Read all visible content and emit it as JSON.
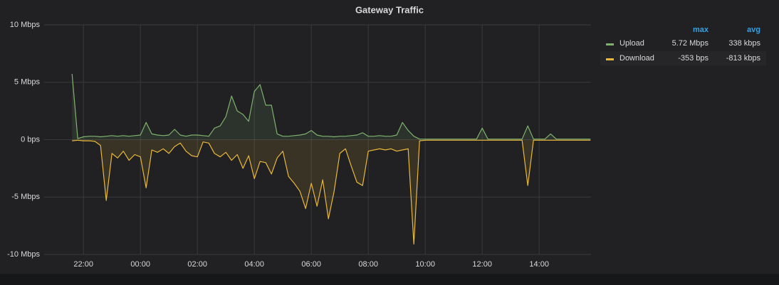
{
  "chart_data": {
    "type": "line",
    "title": "Gateway Traffic",
    "x": [
      20.8,
      21.0,
      21.2,
      21.4,
      21.6,
      21.8,
      22.0,
      22.2,
      22.4,
      22.6,
      22.8,
      23.0,
      23.2,
      23.4,
      23.6,
      23.8,
      24.0,
      24.2,
      24.4,
      24.6,
      24.8,
      25.0,
      25.2,
      25.4,
      25.6,
      25.8,
      26.0,
      26.2,
      26.4,
      26.6,
      26.8,
      27.0,
      27.2,
      27.4,
      27.6,
      27.8,
      28.0,
      28.2,
      28.4,
      28.6,
      28.8,
      29.0,
      29.2,
      29.4,
      29.6,
      29.8,
      30.0,
      30.2,
      30.4,
      30.6,
      30.8,
      31.0,
      31.2,
      31.4,
      31.6,
      31.8,
      32.0,
      32.2,
      32.4,
      32.6,
      32.8,
      33.0,
      33.2,
      33.4,
      33.6,
      33.8,
      34.0,
      34.2,
      34.4,
      34.6,
      34.8,
      35.0,
      35.2,
      35.4,
      35.6,
      35.8,
      36.0,
      36.2,
      36.4,
      36.6,
      36.8,
      37.0,
      37.2,
      37.4,
      37.6,
      37.8,
      38.0,
      38.2,
      38.4,
      38.6,
      38.8,
      39.0,
      39.2,
      39.4,
      39.6,
      39.8
    ],
    "series": [
      {
        "name": "Upload",
        "color": "#7eb26d",
        "legend": {
          "max": "5.72 Mbps",
          "avg": "338 kbps"
        },
        "values": [
          null,
          null,
          null,
          null,
          5.72,
          0.1,
          0.25,
          0.3,
          0.3,
          0.25,
          0.3,
          0.35,
          0.3,
          0.35,
          0.3,
          0.35,
          0.4,
          1.5,
          0.5,
          0.4,
          0.35,
          0.4,
          0.9,
          0.4,
          0.3,
          0.4,
          0.4,
          0.35,
          0.3,
          1.0,
          1.2,
          2.0,
          3.8,
          2.5,
          2.2,
          1.6,
          4.2,
          4.8,
          3.0,
          3.0,
          0.5,
          0.3,
          0.3,
          0.35,
          0.4,
          0.5,
          0.8,
          0.4,
          0.3,
          0.3,
          0.25,
          0.3,
          0.3,
          0.35,
          0.4,
          0.6,
          0.3,
          0.3,
          0.35,
          0.3,
          0.3,
          0.4,
          1.5,
          0.8,
          0.3,
          0.05,
          0.05,
          0.05,
          0.05,
          0.05,
          0.05,
          0.05,
          0.05,
          0.05,
          0.05,
          0.05,
          1.0,
          0.05,
          0.05,
          0.05,
          0.05,
          0.05,
          0.05,
          0.05,
          1.2,
          0.05,
          0.05,
          0.05,
          0.5,
          0.05,
          0.05,
          0.05,
          0.05,
          0.05,
          0.05,
          0.05
        ]
      },
      {
        "name": "Download",
        "color": "#eab839",
        "legend": {
          "max": "-353 bps",
          "avg": "-813 kbps"
        },
        "values": [
          null,
          null,
          null,
          null,
          -0.1,
          -0.05,
          -0.1,
          -0.1,
          -0.15,
          -0.5,
          -5.3,
          -1.2,
          -1.6,
          -1.0,
          -1.8,
          -1.3,
          -1.5,
          -4.2,
          -0.9,
          -1.1,
          -0.8,
          -1.2,
          -0.6,
          -0.3,
          -1.0,
          -1.4,
          -1.5,
          -0.2,
          -0.3,
          -1.2,
          -1.5,
          -1.1,
          -1.8,
          -1.3,
          -2.5,
          -1.4,
          -3.4,
          -1.9,
          -2.0,
          -3.0,
          -1.6,
          -1.0,
          -3.2,
          -3.8,
          -4.5,
          -6.0,
          -3.8,
          -5.8,
          -3.5,
          -6.9,
          -4.5,
          -1.2,
          -0.8,
          -2.3,
          -3.7,
          -4.0,
          -1.0,
          -0.9,
          -0.8,
          -0.9,
          -0.8,
          -1.0,
          -0.9,
          -0.8,
          -9.1,
          -0.1,
          -0.05,
          -0.05,
          -0.05,
          -0.05,
          -0.05,
          -0.05,
          -0.05,
          -0.05,
          -0.05,
          -0.05,
          -0.05,
          -0.05,
          -0.05,
          -0.05,
          -0.05,
          -0.05,
          -0.05,
          -0.05,
          -4.0,
          -0.05,
          -0.05,
          -0.05,
          -0.05,
          -0.05,
          -0.05,
          -0.05,
          -0.05,
          -0.05,
          -0.05,
          -0.05
        ]
      }
    ],
    "legend_columns": [
      "max",
      "avg"
    ],
    "xlim": [
      20.62,
      39.82
    ],
    "xticks": [
      {
        "value": 22,
        "label": "22:00"
      },
      {
        "value": 24,
        "label": "00:00"
      },
      {
        "value": 26,
        "label": "02:00"
      },
      {
        "value": 28,
        "label": "04:00"
      },
      {
        "value": 30,
        "label": "06:00"
      },
      {
        "value": 32,
        "label": "08:00"
      },
      {
        "value": 34,
        "label": "10:00"
      },
      {
        "value": 36,
        "label": "12:00"
      },
      {
        "value": 38,
        "label": "14:00"
      }
    ],
    "ylim": [
      -10,
      10
    ],
    "yticks": [
      {
        "value": 10,
        "label": "10 Mbps"
      },
      {
        "value": 5,
        "label": "5 Mbps"
      },
      {
        "value": 0,
        "label": "0 bps"
      },
      {
        "value": -5,
        "label": "-5 Mbps"
      },
      {
        "value": -10,
        "label": "-10 Mbps"
      }
    ],
    "grid": true
  }
}
